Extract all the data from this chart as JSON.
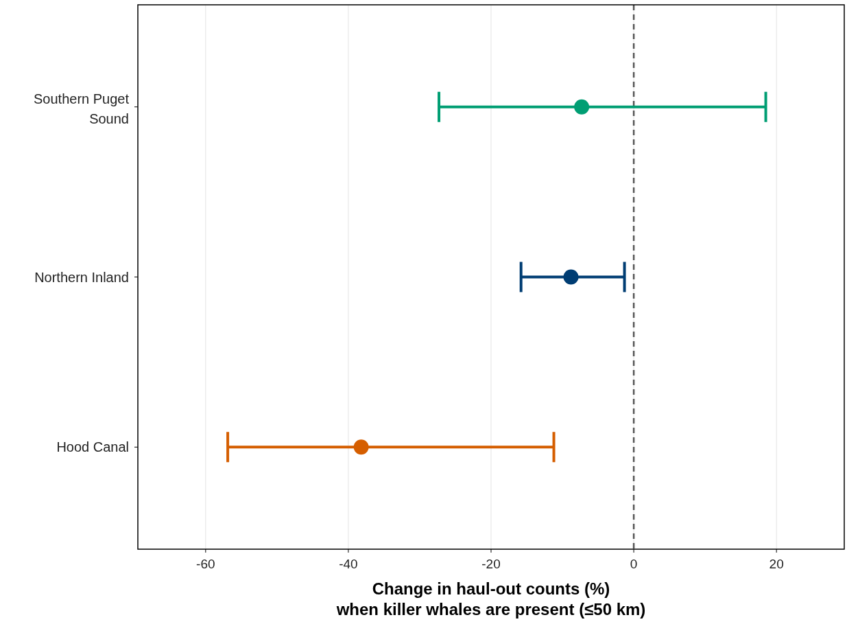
{
  "chart_data": {
    "type": "scatter",
    "orientation": "horizontal",
    "categories": [
      "Southern Puget Sound",
      "Northern Inland",
      "Hood Canal"
    ],
    "values": [
      -7.3,
      -8.8,
      -38.2
    ],
    "colors": [
      "#009e73",
      "#003d73",
      "#d55e00"
    ],
    "errors": [
      [
        -27.3,
        18.5
      ],
      [
        -15.8,
        -1.3
      ],
      [
        -56.9,
        -11.2
      ]
    ],
    "xlim": [
      -69.5,
      29.5
    ],
    "xticks": [
      -60,
      -40,
      -20,
      0,
      20
    ],
    "xlabel": "Change in haul-out counts (%)\nwhen killer whales are present (≤50 km)",
    "ref_lines": [
      {
        "axis": "x",
        "value": 0,
        "color": "#555555",
        "line_style": "dashed"
      }
    ],
    "grid": "x",
    "marker": "circle"
  }
}
